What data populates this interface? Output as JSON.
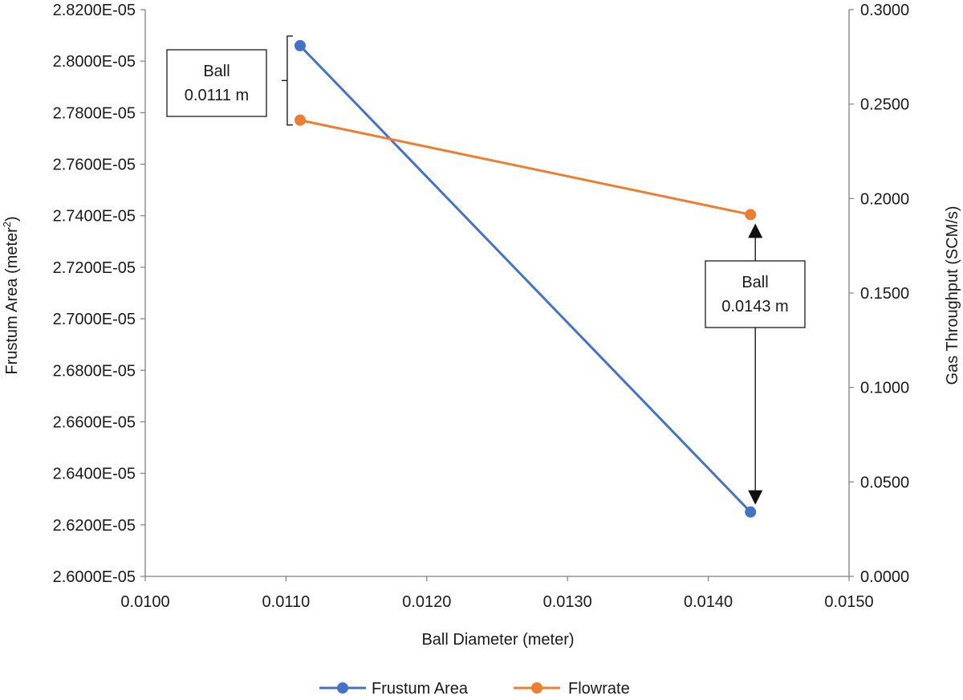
{
  "chart_data": {
    "type": "line",
    "title": "",
    "xlabel": "Ball Diameter (meter)",
    "ylabel_left_main": "Frustum Area (meter",
    "ylabel_left_sup": "2",
    "ylabel_left_tail": ")",
    "ylabel_right": "Gas Throughput (SCM/s)",
    "xlim": [
      0.01,
      0.015
    ],
    "ylim_left": [
      2.6e-05,
      2.82e-05
    ],
    "ylim_right": [
      0.0,
      0.3
    ],
    "x_ticks": [
      {
        "value": 0.01,
        "label": "0.0100"
      },
      {
        "value": 0.011,
        "label": "0.0110"
      },
      {
        "value": 0.012,
        "label": "0.0120"
      },
      {
        "value": 0.013,
        "label": "0.0130"
      },
      {
        "value": 0.014,
        "label": "0.0140"
      },
      {
        "value": 0.015,
        "label": "0.0150"
      }
    ],
    "y_left_ticks": [
      {
        "value": 2.6e-05,
        "label": "2.6000E-05"
      },
      {
        "value": 2.62e-05,
        "label": "2.6200E-05"
      },
      {
        "value": 2.64e-05,
        "label": "2.6400E-05"
      },
      {
        "value": 2.66e-05,
        "label": "2.6600E-05"
      },
      {
        "value": 2.68e-05,
        "label": "2.6800E-05"
      },
      {
        "value": 2.7e-05,
        "label": "2.7000E-05"
      },
      {
        "value": 2.72e-05,
        "label": "2.7200E-05"
      },
      {
        "value": 2.74e-05,
        "label": "2.7400E-05"
      },
      {
        "value": 2.76e-05,
        "label": "2.7600E-05"
      },
      {
        "value": 2.78e-05,
        "label": "2.7800E-05"
      },
      {
        "value": 2.8e-05,
        "label": "2.8000E-05"
      },
      {
        "value": 2.82e-05,
        "label": "2.8200E-05"
      }
    ],
    "y_right_ticks": [
      {
        "value": 0.0,
        "label": "0.0000"
      },
      {
        "value": 0.05,
        "label": "0.0500"
      },
      {
        "value": 0.1,
        "label": "0.1000"
      },
      {
        "value": 0.15,
        "label": "0.1500"
      },
      {
        "value": 0.2,
        "label": "0.2000"
      },
      {
        "value": 0.25,
        "label": "0.2500"
      },
      {
        "value": 0.3,
        "label": "0.3000"
      }
    ],
    "series": [
      {
        "name": "Frustum Area",
        "axis": "left",
        "color": "#4472C4",
        "x": [
          0.0111,
          0.0143
        ],
        "y": [
          2.806e-05,
          2.625e-05
        ]
      },
      {
        "name": "Flowrate",
        "axis": "right",
        "color": "#ED7D31",
        "x": [
          0.0111,
          0.0143
        ],
        "y": [
          0.2415,
          0.1915
        ]
      }
    ],
    "annotations": [
      {
        "line1": "Ball",
        "line2": "0.0111 m",
        "x": 0.0111
      },
      {
        "line1": "Ball",
        "line2": "0.0143 m",
        "x": 0.0143
      }
    ],
    "grid": false,
    "legend_position": "bottom-center"
  }
}
